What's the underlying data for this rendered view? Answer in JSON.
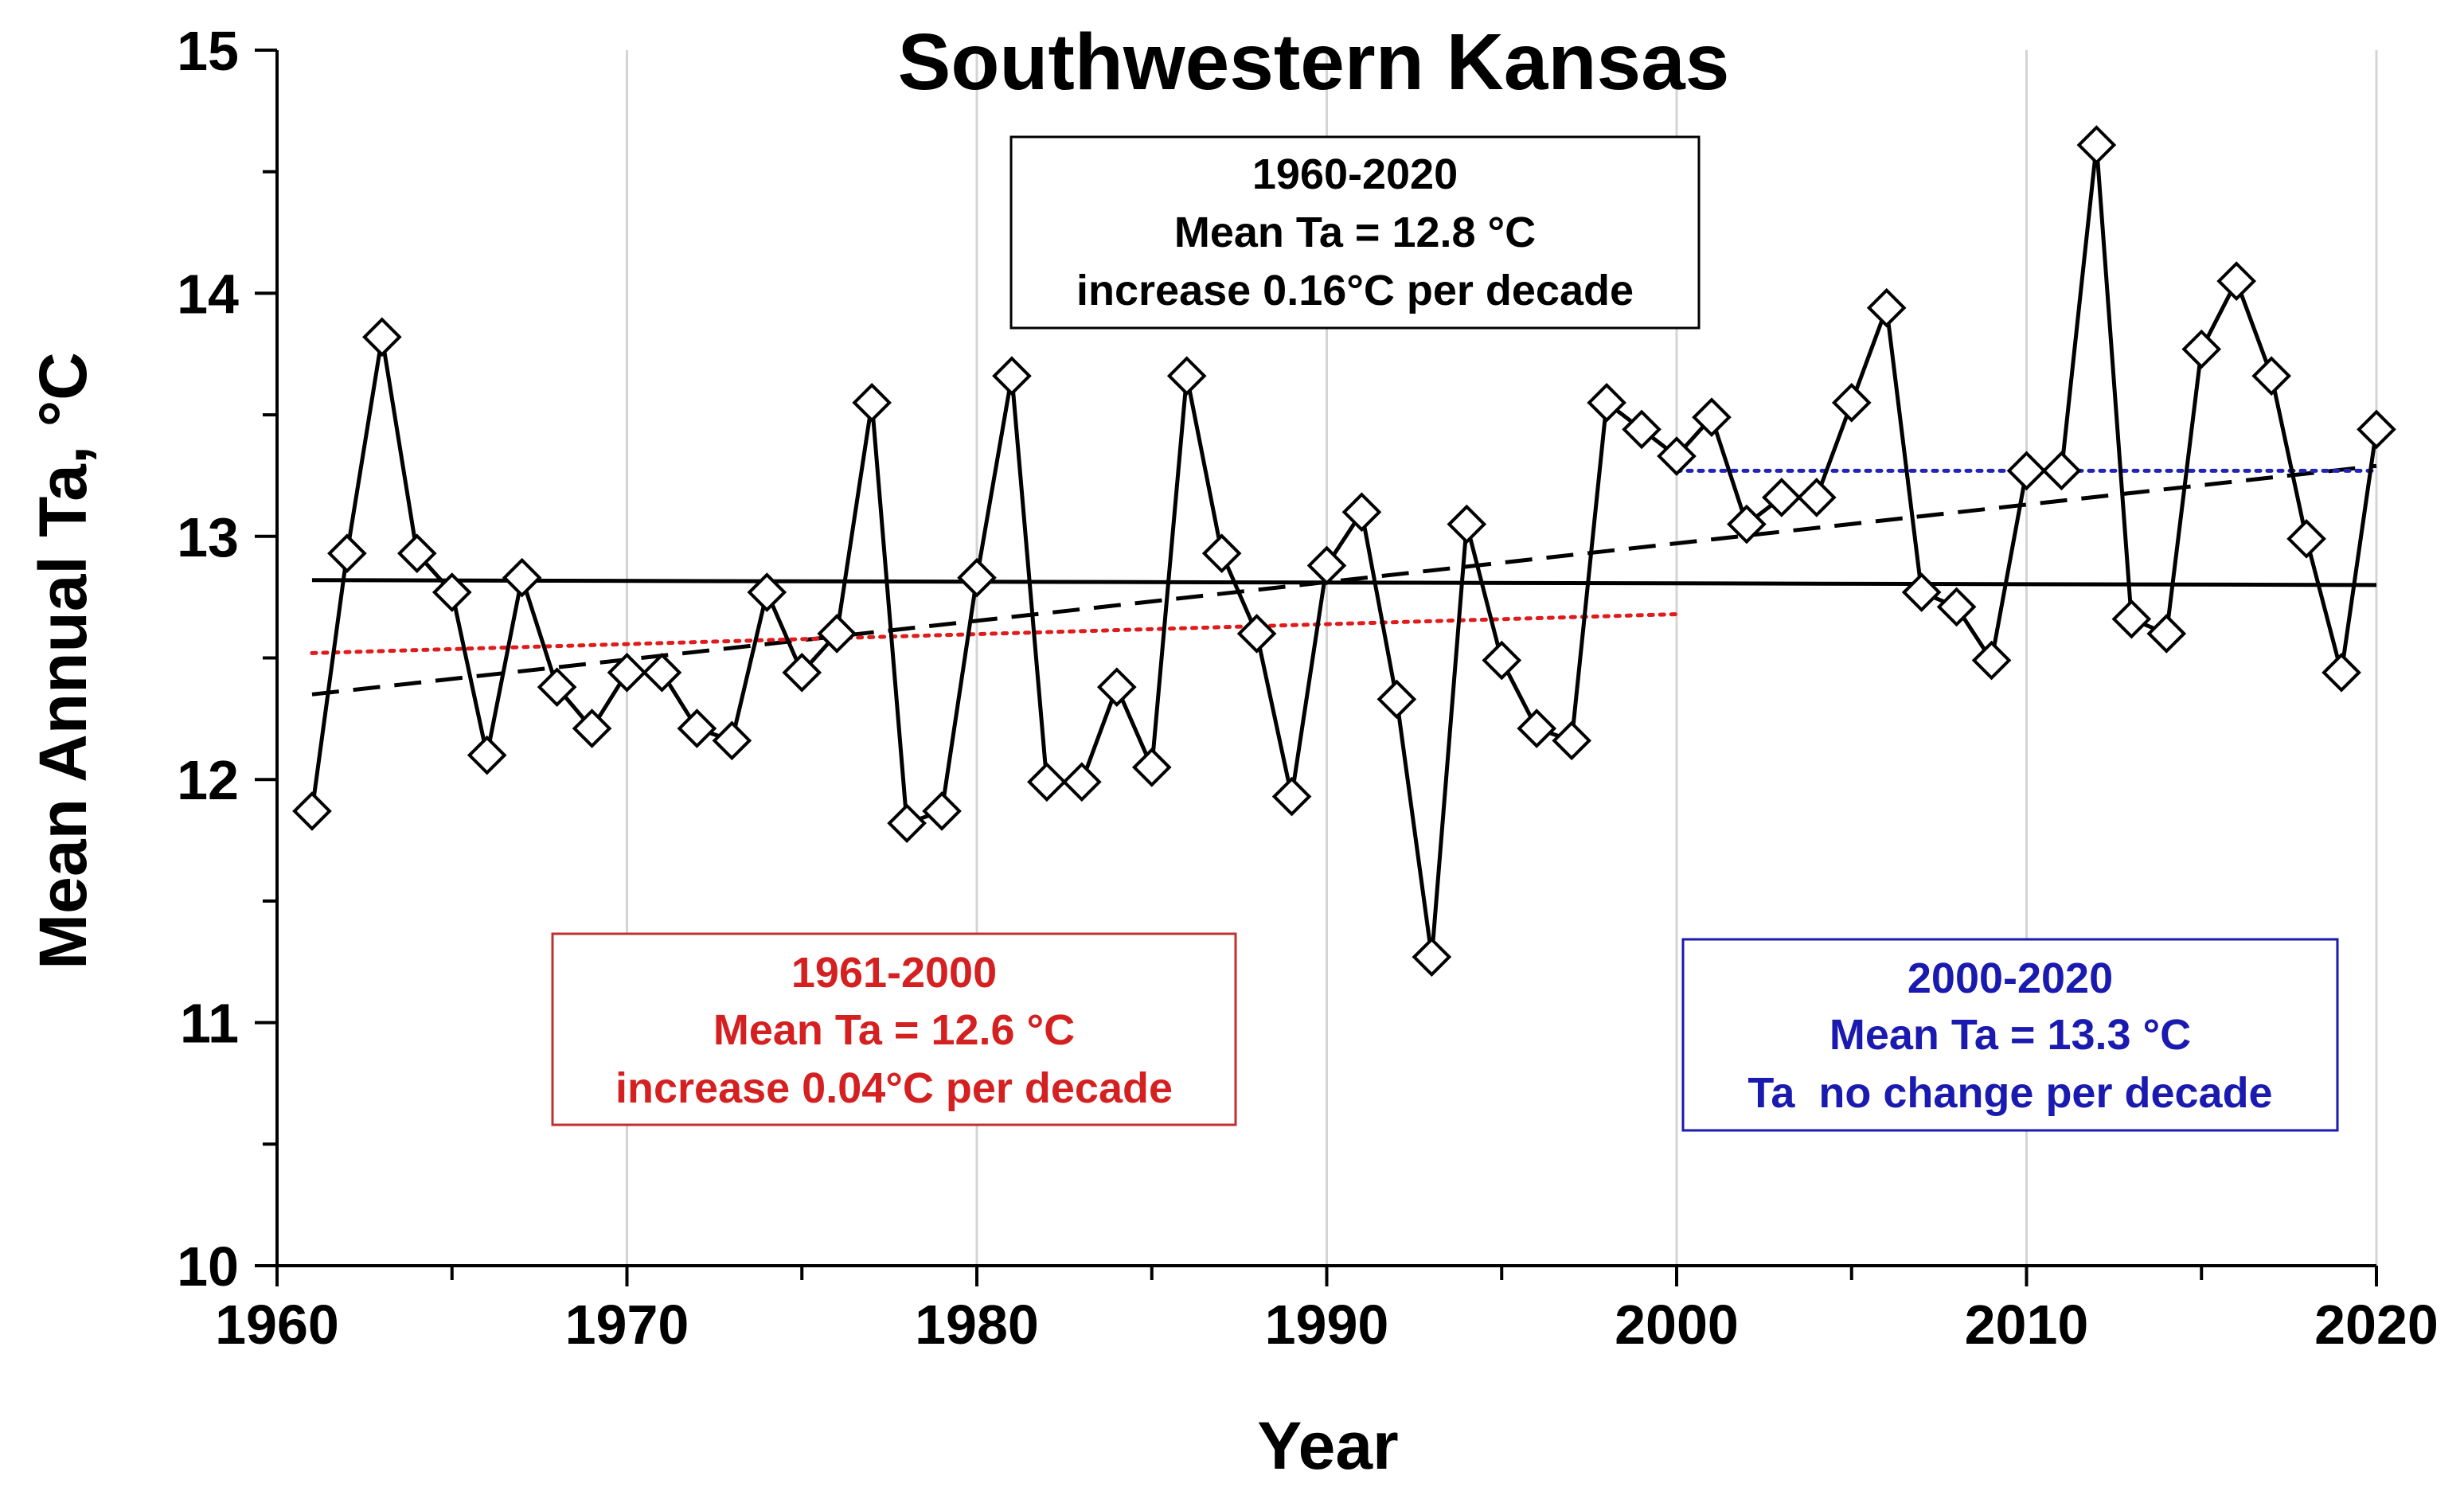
{
  "chart_data": {
    "type": "line",
    "title": "Southwestern Kansas",
    "xlabel": "Year",
    "ylabel": "Mean Annual Ta, °C",
    "xlim": [
      1960,
      2020
    ],
    "ylim": [
      10,
      15
    ],
    "x_ticks": [
      "1960",
      "1970",
      "1980",
      "1990",
      "2000",
      "2010",
      "2020"
    ],
    "y_ticks": [
      "10",
      "11",
      "12",
      "13",
      "14",
      "15"
    ],
    "grid": "vertical",
    "series": [
      {
        "marker": "open-diamond",
        "color": "#000000",
        "x": [
          1961,
          1962,
          1963,
          1964,
          1965,
          1966,
          1967,
          1968,
          1969,
          1970,
          1971,
          1972,
          1973,
          1974,
          1975,
          1976,
          1977,
          1978,
          1979,
          1980,
          1981,
          1982,
          1983,
          1984,
          1985,
          1986,
          1987,
          1988,
          1989,
          1990,
          1991,
          1992,
          1993,
          1994,
          1995,
          1996,
          1997,
          1998,
          1999,
          2000,
          2001,
          2002,
          2003,
          2004,
          2005,
          2006,
          2007,
          2008,
          2009,
          2010,
          2011,
          2012,
          2013,
          2014,
          2015,
          2016,
          2017,
          2018,
          2019,
          2020
        ],
        "y": [
          11.87,
          12.93,
          13.82,
          12.93,
          12.77,
          12.1,
          12.83,
          12.38,
          12.21,
          12.44,
          12.44,
          12.21,
          12.16,
          12.77,
          12.44,
          12.6,
          13.55,
          11.82,
          11.87,
          12.83,
          13.66,
          11.99,
          11.99,
          12.38,
          12.05,
          13.66,
          12.93,
          12.6,
          11.93,
          12.88,
          13.1,
          12.33,
          11.27,
          13.05,
          12.49,
          12.21,
          12.16,
          13.55,
          13.44,
          13.33,
          13.49,
          13.05,
          13.16,
          13.16,
          13.55,
          13.94,
          12.77,
          12.71,
          12.49,
          13.27,
          13.27,
          14.61,
          12.66,
          12.6,
          13.77,
          14.05,
          13.66,
          12.99,
          12.44,
          13.44
        ]
      }
    ],
    "reference_lines": [
      {
        "style": "solid",
        "color": "#000000",
        "x": [
          1961,
          2020
        ],
        "y": [
          12.82,
          12.8
        ]
      },
      {
        "style": "dashed",
        "color": "#000000",
        "x": [
          1961,
          2020
        ],
        "y": [
          12.35,
          13.29
        ]
      },
      {
        "style": "dotted",
        "color": "#e01b1b",
        "x": [
          1961,
          2000
        ],
        "y": [
          12.52,
          12.68
        ]
      },
      {
        "style": "dotted",
        "color": "#2323b8",
        "x": [
          2000,
          2020
        ],
        "y": [
          13.27,
          13.27
        ]
      }
    ],
    "annotations": [
      {
        "lines": [
          "1960-2020",
          "Mean Ta = 12.8 °C",
          "increase 0.16°C per decade"
        ],
        "color": "#000000"
      },
      {
        "lines": [
          "1961-2000",
          "Mean Ta = 12.6 °C",
          "increase 0.04°C per decade"
        ],
        "color": "#d42020"
      },
      {
        "lines": [
          "2000-2020",
          "Mean Ta = 13.3 °C",
          "Ta  no change per decade"
        ],
        "color": "#1a1ab0"
      }
    ]
  }
}
